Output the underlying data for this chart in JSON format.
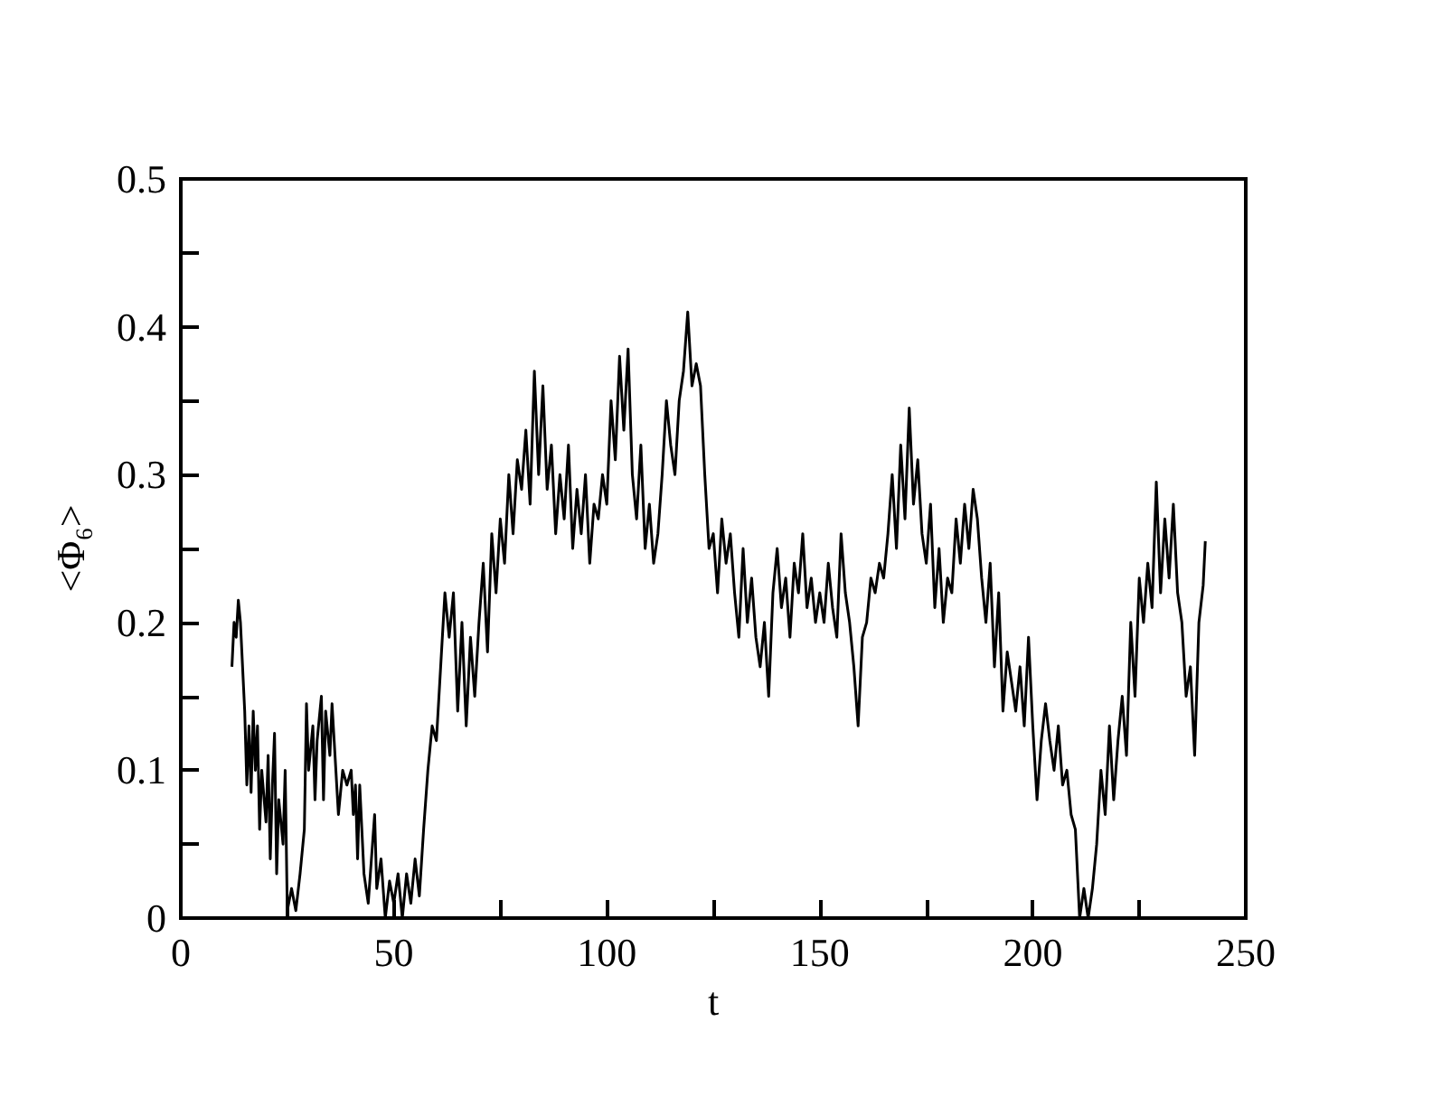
{
  "chart_data": {
    "type": "line",
    "xlabel": "t",
    "ylabel": "<Φ₆>",
    "xlim": [
      0,
      250
    ],
    "ylim": [
      0,
      0.5
    ],
    "xticks": [
      0,
      {
        "value": 25,
        "label": null
      },
      50,
      {
        "value": 75,
        "label": null
      },
      100,
      {
        "value": 125,
        "label": null
      },
      150,
      {
        "value": 175,
        "label": null
      },
      200,
      {
        "value": 225,
        "label": null
      },
      250
    ],
    "yticks": [
      0,
      {
        "value": 0.05,
        "label": null
      },
      0.1,
      {
        "value": 0.15,
        "label": null
      },
      0.2,
      {
        "value": 0.25,
        "label": null
      },
      0.3,
      {
        "value": 0.35,
        "label": null
      },
      0.4,
      {
        "value": 0.45,
        "label": null
      },
      0.5
    ],
    "series": [
      {
        "color": "#000000",
        "x": [
          12,
          12.5,
          13,
          13.5,
          14,
          15,
          15.5,
          16,
          16.5,
          17,
          17.5,
          18,
          18.5,
          19,
          20,
          20.5,
          21,
          21.5,
          22,
          22.5,
          23,
          24,
          24.5,
          25,
          26,
          27,
          28,
          29,
          29.5,
          30,
          31,
          31.5,
          32,
          33,
          33.5,
          34,
          35,
          35.5,
          36,
          37,
          38,
          39,
          40,
          40.5,
          41,
          41.5,
          42,
          43,
          44,
          45,
          45.5,
          46,
          47,
          48,
          49,
          50,
          51,
          52,
          53,
          54,
          55,
          56,
          57,
          58,
          59,
          60,
          61,
          62,
          63,
          64,
          65,
          66,
          67,
          68,
          69,
          70,
          71,
          72,
          73,
          74,
          75,
          76,
          77,
          78,
          79,
          80,
          81,
          82,
          83,
          84,
          85,
          86,
          87,
          88,
          89,
          90,
          91,
          92,
          93,
          94,
          95,
          96,
          97,
          98,
          99,
          100,
          101,
          102,
          103,
          104,
          105,
          106,
          107,
          108,
          109,
          110,
          111,
          112,
          113,
          114,
          115,
          116,
          117,
          118,
          119,
          120,
          121,
          122,
          123,
          124,
          125,
          126,
          127,
          128,
          129,
          130,
          131,
          132,
          133,
          134,
          135,
          136,
          137,
          138,
          139,
          140,
          141,
          142,
          143,
          144,
          145,
          146,
          147,
          148,
          149,
          150,
          151,
          152,
          153,
          154,
          155,
          156,
          157,
          158,
          159,
          160,
          161,
          162,
          163,
          164,
          165,
          166,
          167,
          168,
          169,
          170,
          171,
          172,
          173,
          174,
          175,
          176,
          177,
          178,
          179,
          180,
          181,
          182,
          183,
          184,
          185,
          186,
          187,
          188,
          189,
          190,
          191,
          192,
          193,
          194,
          195,
          196,
          197,
          198,
          199,
          200,
          201,
          202,
          203,
          204,
          205,
          206,
          207,
          208,
          209,
          210,
          211,
          212,
          213,
          214,
          215,
          216,
          217,
          218,
          219,
          220,
          221,
          222,
          223,
          224,
          225,
          226,
          227,
          228,
          229,
          230,
          231,
          232,
          233,
          234,
          235,
          236,
          237,
          238,
          239,
          240,
          240.5
        ],
        "values": [
          0.17,
          0.2,
          0.19,
          0.215,
          0.2,
          0.14,
          0.09,
          0.13,
          0.085,
          0.14,
          0.1,
          0.13,
          0.06,
          0.1,
          0.065,
          0.11,
          0.04,
          0.09,
          0.125,
          0.03,
          0.08,
          0.05,
          0.1,
          0.005,
          0.02,
          0.005,
          0.03,
          0.06,
          0.145,
          0.1,
          0.13,
          0.08,
          0.12,
          0.15,
          0.08,
          0.14,
          0.11,
          0.145,
          0.12,
          0.07,
          0.1,
          0.09,
          0.1,
          0.07,
          0.09,
          0.04,
          0.09,
          0.03,
          0.01,
          0.05,
          0.07,
          0.02,
          0.04,
          0.0,
          0.025,
          0.01,
          0.03,
          0.0,
          0.03,
          0.01,
          0.04,
          0.015,
          0.06,
          0.1,
          0.13,
          0.12,
          0.17,
          0.22,
          0.19,
          0.22,
          0.14,
          0.2,
          0.13,
          0.19,
          0.15,
          0.2,
          0.24,
          0.18,
          0.26,
          0.22,
          0.27,
          0.24,
          0.3,
          0.26,
          0.31,
          0.29,
          0.33,
          0.28,
          0.37,
          0.3,
          0.36,
          0.29,
          0.32,
          0.26,
          0.3,
          0.27,
          0.32,
          0.25,
          0.29,
          0.26,
          0.3,
          0.24,
          0.28,
          0.27,
          0.3,
          0.28,
          0.35,
          0.31,
          0.38,
          0.33,
          0.385,
          0.3,
          0.27,
          0.32,
          0.25,
          0.28,
          0.24,
          0.26,
          0.3,
          0.35,
          0.32,
          0.3,
          0.35,
          0.37,
          0.41,
          0.36,
          0.375,
          0.36,
          0.3,
          0.25,
          0.26,
          0.22,
          0.27,
          0.24,
          0.26,
          0.22,
          0.19,
          0.25,
          0.2,
          0.23,
          0.19,
          0.17,
          0.2,
          0.15,
          0.22,
          0.25,
          0.21,
          0.23,
          0.19,
          0.24,
          0.22,
          0.26,
          0.21,
          0.23,
          0.2,
          0.22,
          0.2,
          0.24,
          0.21,
          0.19,
          0.26,
          0.22,
          0.2,
          0.17,
          0.13,
          0.19,
          0.2,
          0.23,
          0.22,
          0.24,
          0.23,
          0.26,
          0.3,
          0.25,
          0.32,
          0.27,
          0.345,
          0.28,
          0.31,
          0.26,
          0.24,
          0.28,
          0.21,
          0.25,
          0.2,
          0.23,
          0.22,
          0.27,
          0.24,
          0.28,
          0.25,
          0.29,
          0.27,
          0.23,
          0.2,
          0.24,
          0.17,
          0.22,
          0.14,
          0.18,
          0.16,
          0.14,
          0.17,
          0.13,
          0.19,
          0.13,
          0.08,
          0.12,
          0.145,
          0.12,
          0.1,
          0.13,
          0.09,
          0.1,
          0.07,
          0.06,
          0.0,
          0.02,
          0.0,
          0.02,
          0.05,
          0.1,
          0.07,
          0.13,
          0.08,
          0.12,
          0.15,
          0.11,
          0.2,
          0.15,
          0.23,
          0.2,
          0.24,
          0.21,
          0.295,
          0.22,
          0.27,
          0.23,
          0.28,
          0.22,
          0.2,
          0.15,
          0.17,
          0.11,
          0.2,
          0.225,
          0.255
        ]
      }
    ]
  }
}
